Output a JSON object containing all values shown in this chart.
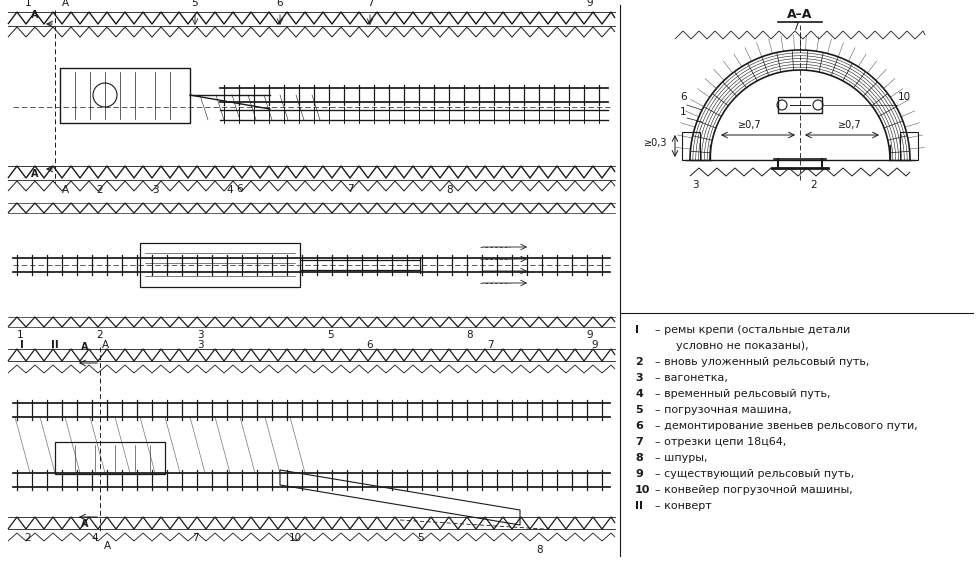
{
  "bg_color": "#ffffff",
  "line_color": "#1a1a1a",
  "legend_items": [
    [
      "I",
      "– ремы крепи (остальные детали"
    ],
    [
      "",
      "      условно не показаны),"
    ],
    [
      "2",
      "– вновь уложенный рельсовый путь,"
    ],
    [
      "3",
      "– вагонетка,"
    ],
    [
      "4",
      "– временный рельсовый путь,"
    ],
    [
      "5",
      "– погрузочная машина,"
    ],
    [
      "6",
      "– демонтирование звеньев рельсового пути,"
    ],
    [
      "7",
      "– отрезки цепи 18ц64,"
    ],
    [
      "8",
      "– шпуры,"
    ],
    [
      "9",
      "– существующий рельсовый путь,"
    ],
    [
      "10",
      "– конвейер погрузочной машины,"
    ],
    [
      "II",
      "– конверт"
    ]
  ],
  "cross_section_title": "А–А",
  "dim_label_07": "≥0,7",
  "dim_label_03": "≥0,3"
}
